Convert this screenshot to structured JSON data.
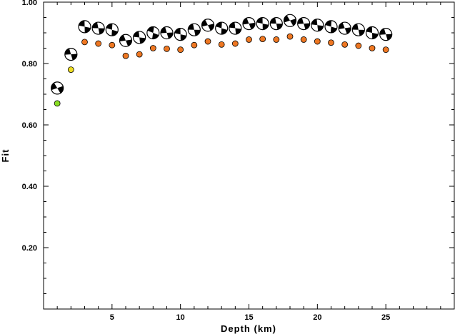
{
  "chart_data": {
    "type": "scatter",
    "title": "",
    "xlabel": "Depth (km)",
    "ylabel": "Fit",
    "xlim": [
      0,
      30
    ],
    "ylim": [
      0,
      1.0
    ],
    "x_tick_labels": [
      "5",
      "10",
      "15",
      "20",
      "25"
    ],
    "x_tick_values": [
      5,
      10,
      15,
      20,
      25
    ],
    "y_tick_labels": [
      "0.20",
      "0.40",
      "0.60",
      "0.80",
      "1.00"
    ],
    "y_tick_values": [
      0.2,
      0.4,
      0.6,
      0.8,
      1.0
    ],
    "grid": false,
    "series": [
      {
        "marker": "focal-mechanism",
        "color": "#000000",
        "x": [
          1,
          2,
          3,
          4,
          5,
          6,
          7,
          8,
          9,
          10,
          11,
          12,
          13,
          14,
          15,
          16,
          17,
          18,
          19,
          20,
          21,
          22,
          23,
          24,
          25
        ],
        "y": [
          0.72,
          0.83,
          0.92,
          0.915,
          0.91,
          0.875,
          0.885,
          0.9,
          0.9,
          0.895,
          0.91,
          0.925,
          0.915,
          0.915,
          0.93,
          0.93,
          0.93,
          0.94,
          0.93,
          0.925,
          0.92,
          0.915,
          0.91,
          0.9,
          0.895
        ]
      },
      {
        "marker": "circle",
        "x": [
          1,
          2,
          3,
          4,
          5,
          6,
          7,
          8,
          9,
          10,
          11,
          12,
          13,
          14,
          15,
          16,
          17,
          18,
          19,
          20,
          21,
          22,
          23,
          24,
          25
        ],
        "y": [
          0.67,
          0.78,
          0.87,
          0.865,
          0.86,
          0.825,
          0.83,
          0.85,
          0.848,
          0.845,
          0.86,
          0.872,
          0.862,
          0.865,
          0.878,
          0.88,
          0.878,
          0.888,
          0.878,
          0.872,
          0.868,
          0.862,
          0.858,
          0.85,
          0.845
        ],
        "colors": [
          "#88dd22",
          "#eedd22",
          "#ee7722",
          "#ee7722",
          "#ee7722",
          "#ee7722",
          "#ee7722",
          "#ee7722",
          "#ee7722",
          "#ee7722",
          "#ee7722",
          "#ee7722",
          "#ee7722",
          "#ee7722",
          "#ee7722",
          "#ee7722",
          "#ee7722",
          "#ee7722",
          "#ee7722",
          "#ee7722",
          "#ee7722",
          "#ee7722",
          "#ee7722",
          "#ee7722",
          "#ee7722"
        ]
      }
    ],
    "mechanism_angles": [
      20,
      35,
      50,
      40,
      55,
      30,
      45,
      60,
      35,
      50,
      40,
      25,
      55,
      45,
      30,
      50,
      40,
      20,
      35,
      45,
      55,
      30,
      40,
      50,
      35
    ]
  }
}
